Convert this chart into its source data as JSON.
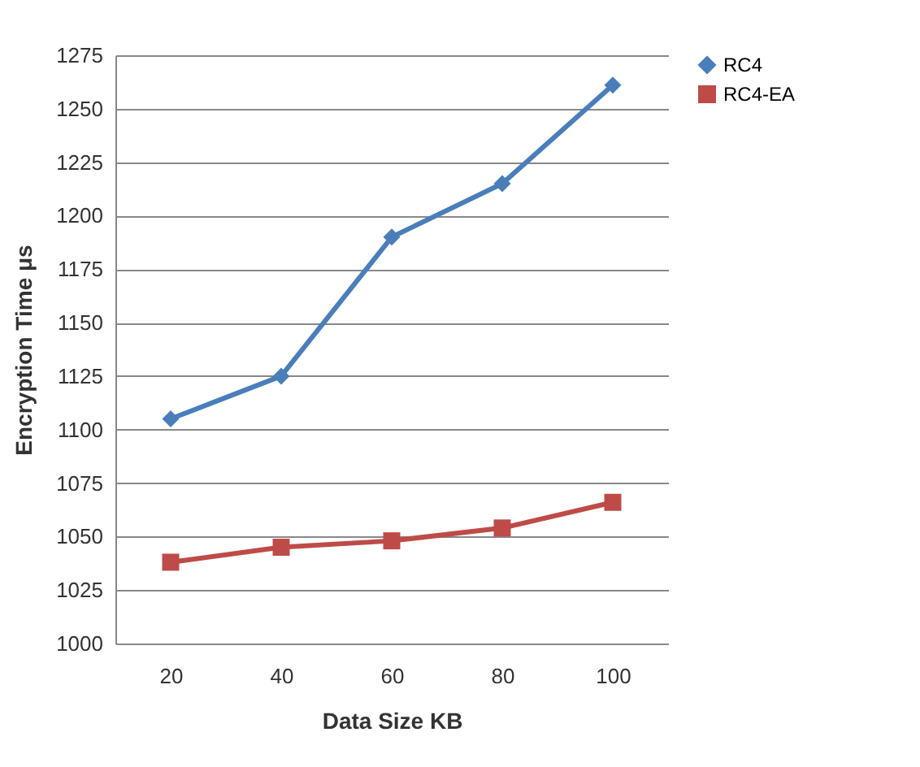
{
  "chart_data": {
    "type": "line",
    "xlabel": "Data Size KB",
    "ylabel": "Encryption Time  μs",
    "categories": [
      "20",
      "40",
      "60",
      "80",
      "100"
    ],
    "series": [
      {
        "name": "RC4",
        "color": "#4a7ebb",
        "marker": "diamond",
        "values": [
          1105,
          1125,
          1190,
          1215,
          1261
        ]
      },
      {
        "name": "RC4-EA",
        "color": "#be4b48",
        "marker": "square",
        "values": [
          1038,
          1045,
          1048,
          1054,
          1066
        ]
      }
    ],
    "ylim": [
      1000,
      1275
    ],
    "yticks": [
      1000,
      1025,
      1050,
      1075,
      1100,
      1125,
      1150,
      1175,
      1200,
      1225,
      1250,
      1275
    ],
    "grid": "y",
    "legend": "right"
  }
}
